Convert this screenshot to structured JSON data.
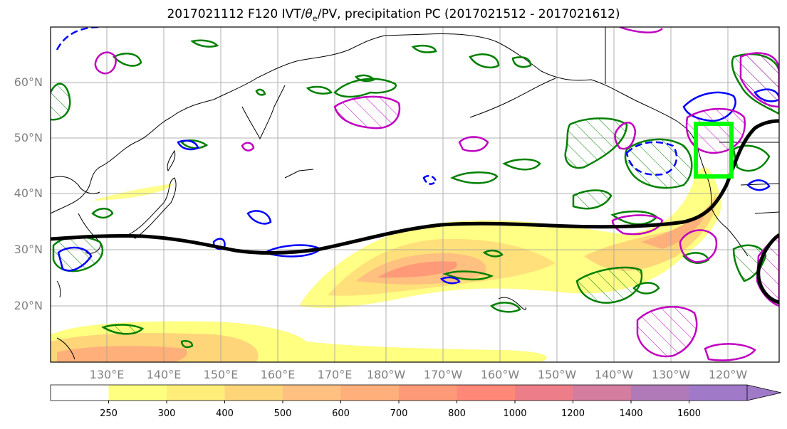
{
  "title": {
    "prefix": "2017021112 F120 IVT/",
    "theta_symbol": "θ",
    "theta_sub": "e",
    "suffix": "/PV, precipitation PC (2017021512 - 2017021612)"
  },
  "lat_labels": [
    "60°N",
    "50°N",
    "40°N",
    "30°N",
    "20°N"
  ],
  "lon_labels": [
    "130°E",
    "140°E",
    "150°E",
    "160°E",
    "170°E",
    "180°W",
    "170°W",
    "160°W",
    "150°W",
    "140°W",
    "130°W",
    "120°W"
  ],
  "colorbar": {
    "levels": [
      "250",
      "300",
      "400",
      "500",
      "600",
      "700",
      "800",
      "1000",
      "1200",
      "1400",
      "1600"
    ],
    "colors": [
      "#ffffff",
      "#ffff80",
      "#ffee7a",
      "#ffd57a",
      "#ffc080",
      "#ffb07a",
      "#ff9a78",
      "#ff8878",
      "#ee7d8a",
      "#d47d9e",
      "#b07ab8",
      "#a07ac8"
    ]
  },
  "styles": {
    "ocean": "#ffffff",
    "coastline": "#000000",
    "grid": "#a0a0a0",
    "pv_line": "#000000",
    "theta_positive": "#008000",
    "theta_negative": "#0000ff",
    "pv_contour": "#c000c0",
    "target_box": "#00ff00"
  }
}
